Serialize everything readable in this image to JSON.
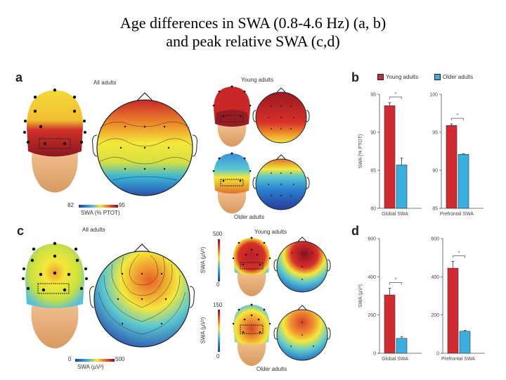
{
  "title": {
    "line1": "Age differences in SWA (0.8-4.6 Hz) (a, b)",
    "line2": "and peak relative SWA (c,d)"
  },
  "panels": {
    "a": {
      "letter": "a",
      "group_label": "All adults",
      "young_label": "Young adults",
      "older_label": "Older adults",
      "colorbar": {
        "min": "82",
        "max": "95",
        "label": "SWA (% PTOT)"
      }
    },
    "c": {
      "letter": "c",
      "group_label": "All adults",
      "young_label": "Young adults",
      "older_label": "Older adults",
      "colorbar": {
        "min": "0",
        "max": "500",
        "label": "SWA (µV²)"
      },
      "young_colorbar": {
        "min": "0",
        "max": "500",
        "label": "SWA (µV²)"
      },
      "older_colorbar": {
        "min": "0",
        "max": "150",
        "label": "SWA (µV²)"
      }
    }
  },
  "colors": {
    "young": "#d02a32",
    "older": "#3aaee0"
  },
  "chart_data": [
    {
      "panel": "b",
      "type": "bar",
      "legend": [
        "Young adults",
        "Older adults"
      ],
      "legend_position": "top",
      "ylabel": "SWA (% PTOT)",
      "subplots": [
        {
          "xlabel": "Global SWA",
          "ylim": [
            80,
            95
          ],
          "yticks": [
            "80",
            "85",
            "90",
            "95"
          ],
          "series": [
            {
              "name": "Young adults",
              "value": 93.5,
              "err": 0.4
            },
            {
              "name": "Older adults",
              "value": 85.7,
              "err": 0.9
            }
          ],
          "significance": "*"
        },
        {
          "xlabel": "Prefrontal SWA",
          "ylim": [
            85,
            100
          ],
          "yticks": [
            "85",
            "90",
            "95",
            "100"
          ],
          "series": [
            {
              "name": "Young adults",
              "value": 95.9,
              "err": 0.2
            },
            {
              "name": "Older adults",
              "value": 92.1,
              "err": 0.1
            }
          ],
          "significance": "*"
        }
      ]
    },
    {
      "panel": "d",
      "type": "bar",
      "ylabel": "SWA (µV²)",
      "subplots": [
        {
          "xlabel": "Global SWA",
          "ylim": [
            0,
            600
          ],
          "yticks": [
            "0",
            "200",
            "400",
            "600"
          ],
          "series": [
            {
              "name": "Young adults",
              "value": 305,
              "err": 35
            },
            {
              "name": "Older adults",
              "value": 78,
              "err": 8
            }
          ],
          "significance": "*"
        },
        {
          "xlabel": "Prefrontal SWA",
          "ylim": [
            0,
            600
          ],
          "yticks": [
            "0",
            "200",
            "400",
            "600"
          ],
          "series": [
            {
              "name": "Young adults",
              "value": 445,
              "err": 35
            },
            {
              "name": "Older adults",
              "value": 115,
              "err": 5
            }
          ],
          "significance": "*"
        }
      ]
    }
  ]
}
